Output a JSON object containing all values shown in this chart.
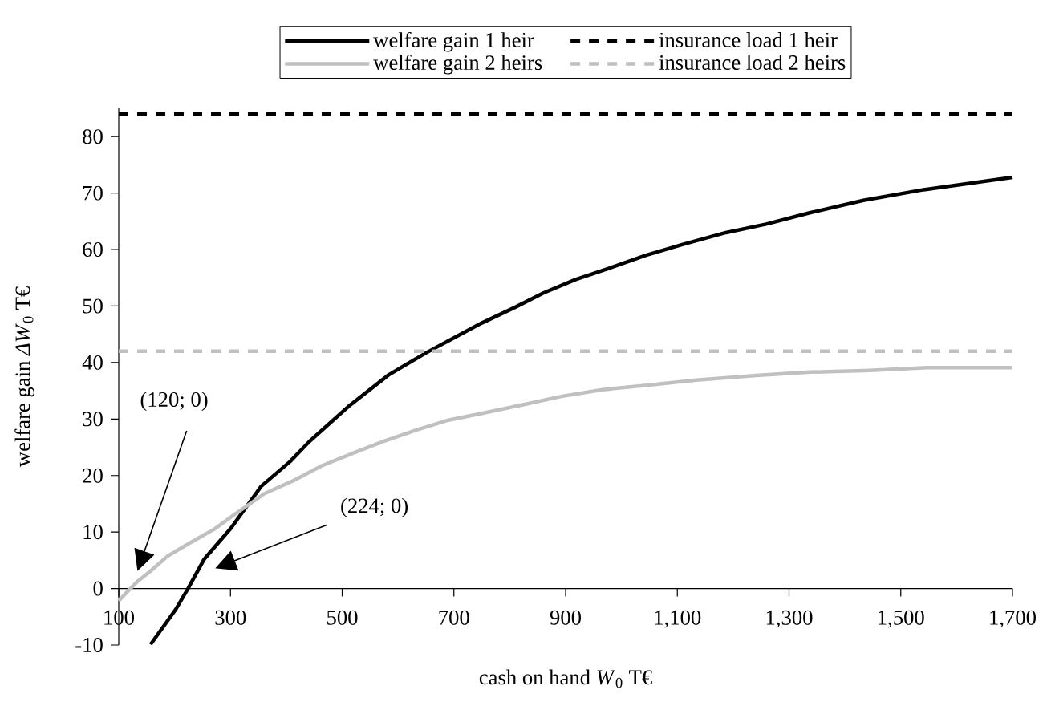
{
  "chart_data": {
    "type": "line",
    "xlabel": "cash on hand *W*$_{0}$ T€",
    "ylabel": "welfare gain *ΔW*$_{0}$ T€",
    "xlim": [
      100,
      1700
    ],
    "xticks": [
      100,
      300,
      500,
      700,
      900,
      {
        "value": 1100,
        "label": "1,100"
      },
      {
        "value": 1300,
        "label": "1,300"
      },
      {
        "value": 1500,
        "label": "1,500"
      },
      {
        "value": 1700,
        "label": "1,700"
      }
    ],
    "ylim": [
      -10,
      85
    ],
    "yticks": [
      -10,
      0,
      10,
      20,
      30,
      40,
      50,
      60,
      70,
      80
    ],
    "legend": "top",
    "marker": "none",
    "series": [
      {
        "name": "welfare gain 1 heir",
        "color": "#000000",
        "x": [
          157,
          202,
          224,
          253,
          301,
          355,
          407,
          441,
          511,
          583,
          648,
          699,
          750,
          810,
          860,
          918,
          978,
          1044,
          1110,
          1187,
          1259,
          1337,
          1433,
          1541,
          1700
        ],
        "values": [
          -9.9,
          -3.7,
          0,
          5.2,
          10.7,
          18.1,
          22.5,
          26,
          32.2,
          37.8,
          41.6,
          44.3,
          47,
          49.8,
          52.3,
          54.7,
          56.7,
          59,
          60.9,
          63,
          64.5,
          66.5,
          68.7,
          70.6,
          72.8
        ]
      },
      {
        "name": "welfare gain 2 heirs",
        "color": "#c0c0c0",
        "x": [
          100,
          116,
          134,
          157,
          187,
          226,
          271,
          307,
          361,
          415,
          463,
          523,
          573,
          631,
          690,
          750,
          822,
          892,
          966,
          1038,
          1134,
          1241,
          1337,
          1445,
          1547,
          1700
        ],
        "values": [
          -2.2,
          -0.5,
          1.3,
          3.1,
          5.7,
          8,
          10.5,
          13.1,
          16.8,
          19.2,
          21.7,
          24.1,
          26,
          28,
          29.8,
          31,
          32.5,
          34,
          35.2,
          35.9,
          36.9,
          37.7,
          38.3,
          38.6,
          39.1,
          39.1
        ]
      }
    ],
    "ref_lines": [
      {
        "axis": "y",
        "value": 84,
        "label": "insurance load 1 heir",
        "color": "#000000",
        "line_style": "dashed"
      },
      {
        "axis": "y",
        "value": 42,
        "label": "insurance load 2 heirs",
        "color": "#c0c0c0",
        "line_style": "dashed"
      }
    ],
    "annotations": [
      "(120; 0)",
      "(224; 0)"
    ]
  }
}
